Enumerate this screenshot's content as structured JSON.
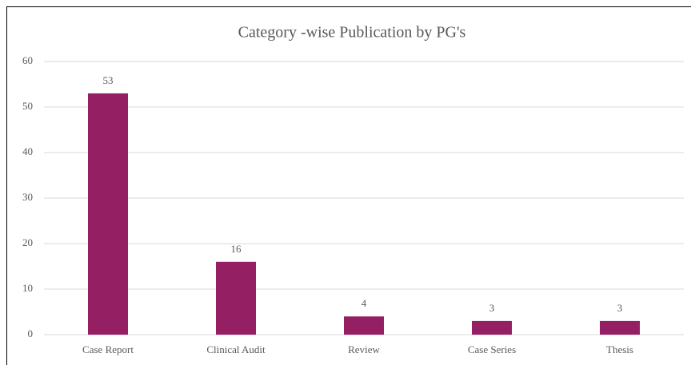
{
  "chart_data": {
    "type": "bar",
    "title": "Category -wise Publication by PG's",
    "categories": [
      "Case Report",
      "Clinical Audit",
      "Review",
      "Case Series",
      "Thesis"
    ],
    "values": [
      53,
      16,
      4,
      3,
      3
    ],
    "color": "#951f63",
    "ylim": [
      0,
      60
    ],
    "yticks": [
      0,
      10,
      20,
      30,
      40,
      50,
      60
    ],
    "grid": true
  }
}
